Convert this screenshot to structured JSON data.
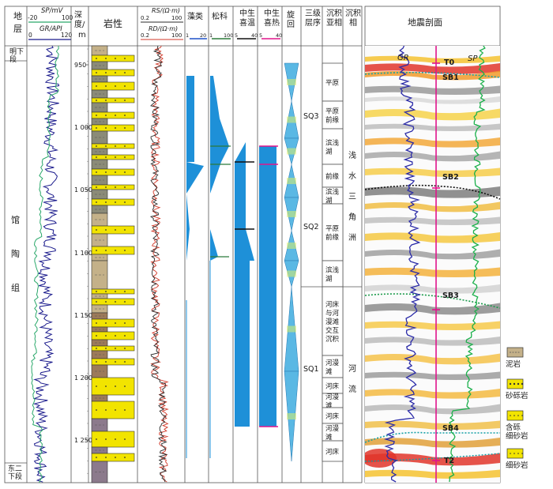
{
  "headers": {
    "stratum": "地层",
    "sp_log": "SP/mV",
    "sp_min": "-20",
    "sp_max": "100",
    "gr_log": "GR/API",
    "gr_min": "0",
    "gr_max": "120",
    "depth": "深度/",
    "depth_unit": "m",
    "lithology": "岩性",
    "rs_log": "RS/(Ω·m)",
    "rs_min": "0.2",
    "rs_max": "100",
    "rd_log": "RD/(Ω·m)",
    "rd_min": "0.2",
    "rd_max": "100",
    "algae": "藻类",
    "algae_min": "1",
    "algae_max": "20",
    "pine": "松科",
    "pine_min": "1",
    "pine_max": "100",
    "meso_temp": "中生喜温",
    "meso_temp_min": "5",
    "meso_temp_max": "40",
    "meso_heat": "中生喜热",
    "meso_heat_min": "5",
    "meso_heat_max": "40",
    "cycle": "旋回",
    "sequence": "三级层序",
    "subfacies": "沉积亚相",
    "facies": "沉积相",
    "seismic": "地震剖面"
  },
  "strata": {
    "top": "明下段",
    "main": "馆陶组",
    "bottom": "东二下段"
  },
  "depth_ticks": [
    "950",
    "1 000",
    "1 050",
    "1 100",
    "1 150",
    "1 200",
    "1 250"
  ],
  "sequences": [
    "SQ3",
    "SQ2",
    "SQ1"
  ],
  "subfacies": [
    "平原",
    "平原前缘",
    "滨浅湖",
    "前缘",
    "滨浅湖",
    "平原前缘",
    "滨浅湖",
    "河床与河漫滩交互沉积",
    "河漫滩",
    "河床",
    "河漫滩",
    "河床",
    "河漫滩",
    "河床"
  ],
  "facies": [
    "浅水三角洲",
    "河流"
  ],
  "seismic_labels": {
    "gr": "GR",
    "sp": "SP",
    "t0": "T0",
    "sb1": "SB1",
    "sb2": "SB2",
    "sb3": "SB3",
    "sb4": "SB4",
    "t2": "T2"
  },
  "legend": [
    {
      "label": "泥岩",
      "fill": "#c4b189"
    },
    {
      "label": "砂砾岩",
      "fill": "#f2e400"
    },
    {
      "label": "含砾细砂岩",
      "fill": "#f2e400"
    },
    {
      "label": "细砂岩",
      "fill": "#f2e400"
    }
  ],
  "colors": {
    "frame": "#555555",
    "gr_curve": "#1a1a8c",
    "sp_curve": "#2aa86a",
    "blue_fill": "#1e90d8",
    "cycle_fill": "#5ab8e4",
    "cycle_mid": "#d8ee6c",
    "magenta": "#e0158c",
    "sand": "#f2e400",
    "mud": "#c4b189",
    "gray_mud": "#8b8b78",
    "brown": "#9c7a5a",
    "purple": "#8c7a8c"
  }
}
